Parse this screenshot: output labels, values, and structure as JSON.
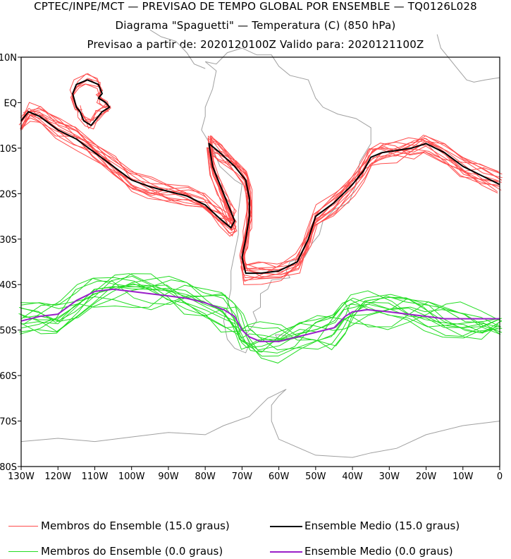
{
  "title": {
    "line1": "CPTEC/INPE/MCT — PREVISAO DE TEMPO GLOBAL POR ENSEMBLE — TQ0126L028",
    "line2": "Diagrama \"Spaguetti\" — Temperatura (C) (850 hPa)",
    "line3": "Previsao a partir de: 2020120100Z  Valido para: 2020121100Z"
  },
  "chart_data": {
    "type": "line",
    "map_projection": "lat-lon",
    "xlim": [
      -130,
      0
    ],
    "ylim": [
      -80,
      10
    ],
    "x_ticks": [
      {
        "value": -130,
        "label": "130W"
      },
      {
        "value": -120,
        "label": "120W"
      },
      {
        "value": -110,
        "label": "110W"
      },
      {
        "value": -100,
        "label": "100W"
      },
      {
        "value": -90,
        "label": "90W"
      },
      {
        "value": -80,
        "label": "80W"
      },
      {
        "value": -70,
        "label": "70W"
      },
      {
        "value": -60,
        "label": "60W"
      },
      {
        "value": -50,
        "label": "50W"
      },
      {
        "value": -40,
        "label": "40W"
      },
      {
        "value": -30,
        "label": "30W"
      },
      {
        "value": -20,
        "label": "20W"
      },
      {
        "value": -10,
        "label": "10W"
      },
      {
        "value": 0,
        "label": "0"
      }
    ],
    "y_ticks": [
      {
        "value": 10,
        "label": "10N"
      },
      {
        "value": 0,
        "label": "EQ"
      },
      {
        "value": -10,
        "label": "10S"
      },
      {
        "value": -20,
        "label": "20S"
      },
      {
        "value": -30,
        "label": "30S"
      },
      {
        "value": -40,
        "label": "40S"
      },
      {
        "value": -50,
        "label": "50S"
      },
      {
        "value": -60,
        "label": "60S"
      },
      {
        "value": -70,
        "label": "70S"
      },
      {
        "value": -80,
        "label": "80S"
      }
    ],
    "grid": false,
    "legend_position": "bottom",
    "colors": {
      "member_15": "#ff4d4d",
      "mean_15": "#000000",
      "member_0": "#22dd22",
      "mean_0": "#9a1fc9",
      "coast": "#a0a0a0"
    },
    "series": [
      {
        "name": "Ensemble Medio (15.0 graus)",
        "color": "#000000",
        "points": [
          [
            -130,
            -4
          ],
          [
            -128,
            -2
          ],
          [
            -125,
            -3
          ],
          [
            -120,
            -6
          ],
          [
            -115,
            -8
          ],
          [
            -110,
            -11
          ],
          [
            -105,
            -14
          ],
          [
            -100,
            -17
          ],
          [
            -95,
            -18.5
          ],
          [
            -90,
            -19.5
          ],
          [
            -85,
            -20.5
          ],
          [
            -80,
            -22.5
          ],
          [
            -76,
            -25.5
          ],
          [
            -73,
            -27.5
          ],
          [
            -72,
            -26
          ],
          [
            -74,
            -22
          ],
          [
            -76,
            -18
          ],
          [
            -78,
            -14
          ],
          [
            -79,
            -9
          ],
          [
            -76,
            -11
          ],
          [
            -72,
            -14
          ],
          [
            -69,
            -17
          ],
          [
            -68,
            -21
          ],
          [
            -68,
            -25
          ],
          [
            -69,
            -30
          ],
          [
            -70,
            -34
          ],
          [
            -69,
            -37.5
          ],
          [
            -65,
            -37.5
          ],
          [
            -60,
            -37
          ],
          [
            -55,
            -35
          ],
          [
            -52,
            -30
          ],
          [
            -50,
            -25
          ],
          [
            -45,
            -22
          ],
          [
            -40,
            -18
          ],
          [
            -37,
            -15
          ],
          [
            -35,
            -12
          ],
          [
            -32,
            -11
          ],
          [
            -28,
            -10.5
          ],
          [
            -24,
            -10
          ],
          [
            -20,
            -9
          ],
          [
            -15,
            -11
          ],
          [
            -10,
            -14
          ],
          [
            -5,
            -16
          ],
          [
            0,
            -18
          ]
        ]
      },
      {
        "name": "Ensemble Medio (15.0 graus)",
        "color": "#000000",
        "points": [
          [
            -114,
            -2
          ],
          [
            -115,
            -1
          ],
          [
            -116,
            2
          ],
          [
            -115,
            4
          ],
          [
            -112,
            5
          ],
          [
            -109,
            4
          ],
          [
            -108,
            2
          ],
          [
            -109,
            1
          ],
          [
            -107,
            0
          ],
          [
            -106,
            -1
          ],
          [
            -108,
            -2
          ],
          [
            -109,
            -3
          ],
          [
            -111,
            -5
          ],
          [
            -113,
            -4
          ],
          [
            -114,
            -2
          ]
        ]
      },
      {
        "name": "Ensemble Medio (0.0 graus)",
        "color": "#9a1fc9",
        "points": [
          [
            -130,
            -48
          ],
          [
            -125,
            -47
          ],
          [
            -120,
            -46.5
          ],
          [
            -115,
            -43.5
          ],
          [
            -110,
            -41.5
          ],
          [
            -105,
            -41
          ],
          [
            -100,
            -41.5
          ],
          [
            -95,
            -42
          ],
          [
            -90,
            -42.5
          ],
          [
            -85,
            -43
          ],
          [
            -80,
            -44
          ],
          [
            -75,
            -45.5
          ],
          [
            -72,
            -47
          ],
          [
            -70,
            -50
          ],
          [
            -68,
            -51.5
          ],
          [
            -65,
            -52.5
          ],
          [
            -60,
            -52.5
          ],
          [
            -55,
            -51.5
          ],
          [
            -50,
            -50.5
          ],
          [
            -45,
            -49.5
          ],
          [
            -42,
            -47
          ],
          [
            -40,
            -46
          ],
          [
            -36,
            -45.5
          ],
          [
            -30,
            -46
          ],
          [
            -25,
            -46.5
          ],
          [
            -20,
            -47
          ],
          [
            -15,
            -47.5
          ],
          [
            -10,
            -47.5
          ],
          [
            -5,
            -47.5
          ],
          [
            0,
            -47.5
          ]
        ]
      }
    ],
    "legend": [
      {
        "label": "Membros do Ensemble (15.0 graus)",
        "color": "#ff4d4d"
      },
      {
        "label": "Ensemble Medio (15.0 graus)",
        "color": "#000000"
      },
      {
        "label": "Membros do Ensemble (0.0 graus)",
        "color": "#22dd22"
      },
      {
        "label": "Ensemble Medio (0.0 graus)",
        "color": "#9a1fc9"
      }
    ]
  }
}
